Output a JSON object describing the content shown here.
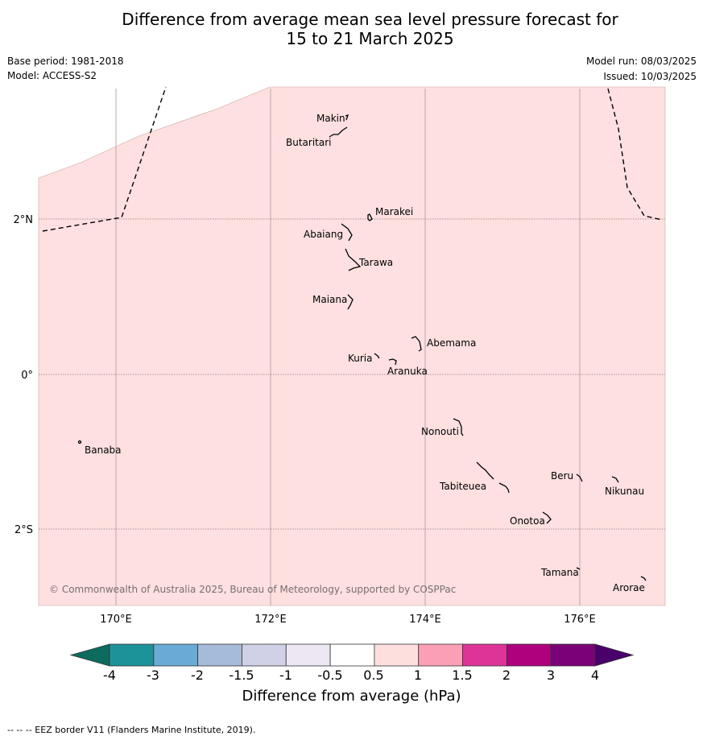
{
  "title": {
    "line1": "Difference from average mean sea level pressure forecast for",
    "line2": "15 to 21 March 2025"
  },
  "meta": {
    "base_period": "Base period: 1981-2018",
    "model": "Model: ACCESS-S2",
    "model_run": "Model run: 08/03/2025",
    "issued": "Issued: 10/03/2025"
  },
  "map": {
    "fill_color": "#fde0df",
    "lat_labels": [
      "2°N",
      "0°",
      "2°S"
    ],
    "lon_labels": [
      "170°E",
      "172°E",
      "174°E",
      "176°E"
    ],
    "places": [
      "Makin",
      "Butaritari",
      "Marakei",
      "Abaiang",
      "Tarawa",
      "Maiana",
      "Abemama",
      "Kuria",
      "Aranuka",
      "Banaba",
      "Nonouti",
      "Beru",
      "Nikunau",
      "Tabiteuea",
      "Onotoa",
      "Tamana",
      "Arorae"
    ],
    "credit": "© Commonwealth of Australia 2025, Bureau of Meteorology, supported by COSPPac"
  },
  "colorbar": {
    "ticks": [
      "-4",
      "-3",
      "-2",
      "-1.5",
      "-1",
      "-0.5",
      "0.5",
      "1",
      "1.5",
      "2",
      "3",
      "4"
    ],
    "colors": [
      "#1c9399",
      "#6aaad6",
      "#a6bad9",
      "#d0d1e6",
      "#ece7f2",
      "#ffffff",
      "#fde0dd",
      "#fa9fb5",
      "#dd3497",
      "#ae017e",
      "#7a0177"
    ],
    "under_color": "#0c6b5e",
    "over_color": "#49006a",
    "label": "Difference from average (hPa)"
  },
  "footnote": "--  --  -- EEZ border V11 (Flanders Marine Institute, 2019)."
}
